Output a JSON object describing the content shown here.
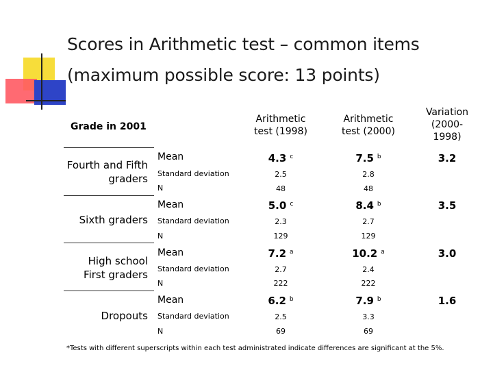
{
  "slide": {
    "title_line1": "Scores in Arithmetic test – common items",
    "title_line2": "(maximum possible score: 13 points)"
  },
  "table": {
    "grade_header": "Grade in 2001",
    "col1_header": [
      "Arithmetic",
      "test (1998)"
    ],
    "col2_header": [
      "Arithmetic",
      "test (2000)"
    ],
    "col3_header": [
      "Variation",
      "(2000-",
      "1998)"
    ],
    "row_labels": {
      "mean": "Mean",
      "sd": "Standard deviation",
      "n": "N"
    },
    "groups": [
      {
        "name_lines": [
          "Fourth and Fifth",
          "graders"
        ],
        "mean_1998": "4.3",
        "sup_1998": "c",
        "mean_2000": "7.5",
        "sup_2000": "b",
        "variation": "3.2",
        "sd_1998": "2.5",
        "sd_2000": "2.8",
        "n_1998": "48",
        "n_2000": "48"
      },
      {
        "name_lines": [
          "Sixth graders"
        ],
        "mean_1998": "5.0",
        "sup_1998": "c",
        "mean_2000": "8.4",
        "sup_2000": "b",
        "variation": "3.5",
        "sd_1998": "2.3",
        "sd_2000": "2.7",
        "n_1998": "129",
        "n_2000": "129"
      },
      {
        "name_lines": [
          "High school",
          "First graders"
        ],
        "mean_1998": "7.2",
        "sup_1998": "a",
        "mean_2000": "10.2",
        "sup_2000": "a",
        "variation": "3.0",
        "sd_1998": "2.7",
        "sd_2000": "2.4",
        "n_1998": "222",
        "n_2000": "222"
      },
      {
        "name_lines": [
          "Dropouts"
        ],
        "mean_1998": "6.2",
        "sup_1998": "b",
        "mean_2000": "7.9",
        "sup_2000": "b",
        "variation": "1.6",
        "sd_1998": "2.5",
        "sd_2000": "3.3",
        "n_1998": "69",
        "n_2000": "69"
      }
    ]
  },
  "footnote": "*Tests with different superscripts within each test administrated indicate differences are significant at the 5%."
}
